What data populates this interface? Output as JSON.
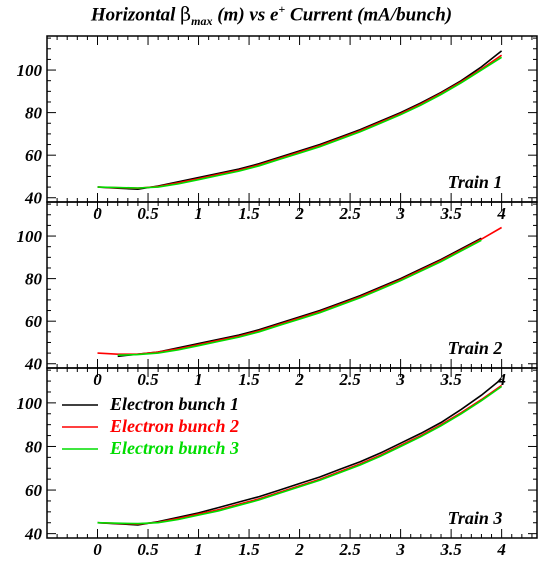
{
  "title": {
    "prefix": "Horizontal ",
    "beta": "β",
    "sub": "max",
    "middle": " (m) vs e",
    "sup": "+",
    "suffix": " Current (mA/bunch)"
  },
  "chart_data": {
    "type": "line",
    "title": "Horizontal βmax (m) vs e+ Current (mA/bunch)",
    "xlabel": "",
    "ylabel": "",
    "xlim": [
      -0.5,
      4.35
    ],
    "xticks": [
      "0",
      "0.5",
      "1",
      "1.5",
      "2",
      "2.5",
      "3",
      "3.5",
      "4"
    ],
    "panels": [
      {
        "label": "Train 1",
        "ylim": [
          38,
          116
        ],
        "yticks": [
          40,
          60,
          80,
          100
        ],
        "series": [
          {
            "name": "Electron bunch 1",
            "color": "#000000",
            "x": [
              0,
              0.2,
              0.4,
              0.6,
              0.8,
              1.0,
              1.2,
              1.4,
              1.6,
              1.8,
              2.0,
              2.2,
              2.4,
              2.6,
              2.8,
              3.0,
              3.2,
              3.4,
              3.6,
              3.8,
              4.0
            ],
            "y": [
              45,
              44.5,
              44,
              45.5,
              47.5,
              49.5,
              51.5,
              53.5,
              56,
              59,
              62,
              65,
              68.5,
              72,
              76,
              80,
              84.5,
              89.5,
              95,
              101.5,
              109
            ]
          },
          {
            "name": "Electron bunch 2",
            "color": "#ff0000",
            "x": [
              0,
              0.2,
              0.4,
              0.6,
              0.8,
              1.0,
              1.2,
              1.4,
              1.6,
              1.8,
              2.0,
              2.2,
              2.4,
              2.6,
              2.8,
              3.0,
              3.2,
              3.4,
              3.6,
              3.8,
              4.0
            ],
            "y": [
              45,
              44.7,
              44.5,
              45.3,
              47,
              49,
              51,
              53,
              55.5,
              58.5,
              61.5,
              64.5,
              68,
              71.5,
              75.5,
              79.5,
              84,
              89,
              94.5,
              100.5,
              107
            ]
          },
          {
            "name": "Electron bunch 3",
            "color": "#00dd00",
            "x": [
              0,
              0.2,
              0.4,
              0.6,
              0.8,
              1.0,
              1.2,
              1.4,
              1.6,
              1.8,
              2.0,
              2.2,
              2.4,
              2.6,
              2.8,
              3.0,
              3.2,
              3.4,
              3.6,
              3.8,
              4.0
            ],
            "y": [
              45,
              44.8,
              44.6,
              45,
              46.5,
              48.5,
              50.5,
              52.5,
              55,
              58,
              61,
              64,
              67.5,
              71,
              75,
              79,
              83.5,
              88.5,
              94,
              100,
              106
            ]
          }
        ]
      },
      {
        "label": "Train 2",
        "ylim": [
          38,
          116
        ],
        "yticks": [
          40,
          60,
          80,
          100
        ],
        "series": [
          {
            "name": "Electron bunch 1",
            "color": "#000000",
            "x": [
              0.2,
              0.4,
              0.6,
              0.8,
              1.0,
              1.2,
              1.4,
              1.6,
              1.8,
              2.0,
              2.2,
              2.4,
              2.6,
              2.8,
              3.0,
              3.2,
              3.4,
              3.6,
              3.8
            ],
            "y": [
              43.5,
              44.5,
              45.5,
              47.5,
              49.5,
              51.5,
              53.5,
              56,
              59,
              62,
              65,
              68.5,
              72,
              76,
              80,
              84.5,
              89,
              94,
              99
            ]
          },
          {
            "name": "Electron bunch 2",
            "color": "#ff0000",
            "x": [
              0,
              0.2,
              0.4,
              0.6,
              0.8,
              1.0,
              1.2,
              1.4,
              1.6,
              1.8,
              2.0,
              2.2,
              2.4,
              2.6,
              2.8,
              3.0,
              3.2,
              3.4,
              3.6,
              3.8,
              4.0
            ],
            "y": [
              45,
              44.5,
              44.5,
              45.5,
              47,
              49,
              51,
              53,
              55.5,
              58.5,
              61.5,
              64.5,
              68,
              71.5,
              75.5,
              79.5,
              84,
              88.5,
              93.5,
              98.5,
              104
            ]
          },
          {
            "name": "Electron bunch 3",
            "color": "#00dd00",
            "x": [
              0.2,
              0.4,
              0.6,
              0.8,
              1.0,
              1.2,
              1.4,
              1.6,
              1.8,
              2.0,
              2.2,
              2.4,
              2.6,
              2.8,
              3.0,
              3.2,
              3.4,
              3.6,
              3.8
            ],
            "y": [
              44,
              44.3,
              45,
              46.5,
              48.5,
              50.5,
              52.5,
              55,
              58,
              61,
              64,
              67.5,
              71,
              75,
              79,
              83.5,
              88,
              93,
              98
            ]
          }
        ]
      },
      {
        "label": "Train 3",
        "ylim": [
          38,
          116
        ],
        "yticks": [
          40,
          60,
          80,
          100
        ],
        "series": [
          {
            "name": "Electron bunch 1",
            "color": "#000000",
            "x": [
              0,
              0.2,
              0.4,
              0.6,
              0.8,
              1.0,
              1.2,
              1.4,
              1.6,
              1.8,
              2.0,
              2.2,
              2.4,
              2.6,
              2.8,
              3.0,
              3.2,
              3.4,
              3.6,
              3.8,
              4.0
            ],
            "y": [
              45,
              44.5,
              44,
              45.5,
              47.5,
              49.5,
              52,
              54.5,
              57,
              60,
              63,
              66,
              69.5,
              73,
              77,
              81.5,
              86,
              91,
              97,
              103.5,
              111
            ]
          },
          {
            "name": "Electron bunch 2",
            "color": "#ff0000",
            "x": [
              0,
              0.2,
              0.4,
              0.6,
              0.8,
              1.0,
              1.2,
              1.4,
              1.6,
              1.8,
              2.0,
              2.2,
              2.4,
              2.6,
              2.8,
              3.0,
              3.2,
              3.4,
              3.6,
              3.8,
              4.0
            ],
            "y": [
              45,
              44.7,
              44.4,
              45.2,
              47,
              49,
              51,
              53.5,
              56,
              59,
              62,
              65,
              68.5,
              72,
              76,
              80.5,
              85,
              90,
              95.5,
              101.5,
              108
            ]
          },
          {
            "name": "Electron bunch 3",
            "color": "#00dd00",
            "x": [
              0,
              0.2,
              0.4,
              0.6,
              0.8,
              1.0,
              1.2,
              1.4,
              1.6,
              1.8,
              2.0,
              2.2,
              2.4,
              2.6,
              2.8,
              3.0,
              3.2,
              3.4,
              3.6,
              3.8,
              4.0
            ],
            "y": [
              45,
              44.8,
              44.6,
              45,
              46.5,
              48.5,
              50.5,
              53,
              55.5,
              58.5,
              61.5,
              64.5,
              68,
              71.5,
              75.5,
              80,
              84.5,
              89.5,
              95,
              101,
              107.5
            ]
          }
        ]
      }
    ],
    "legend": {
      "panel": 2,
      "placement": "upper-left",
      "entries": [
        {
          "name": "Electron bunch 1",
          "color": "#000000"
        },
        {
          "name": "Electron bunch 2",
          "color": "#ff0000"
        },
        {
          "name": "Electron bunch 3",
          "color": "#00dd00"
        }
      ]
    },
    "grid": false
  }
}
